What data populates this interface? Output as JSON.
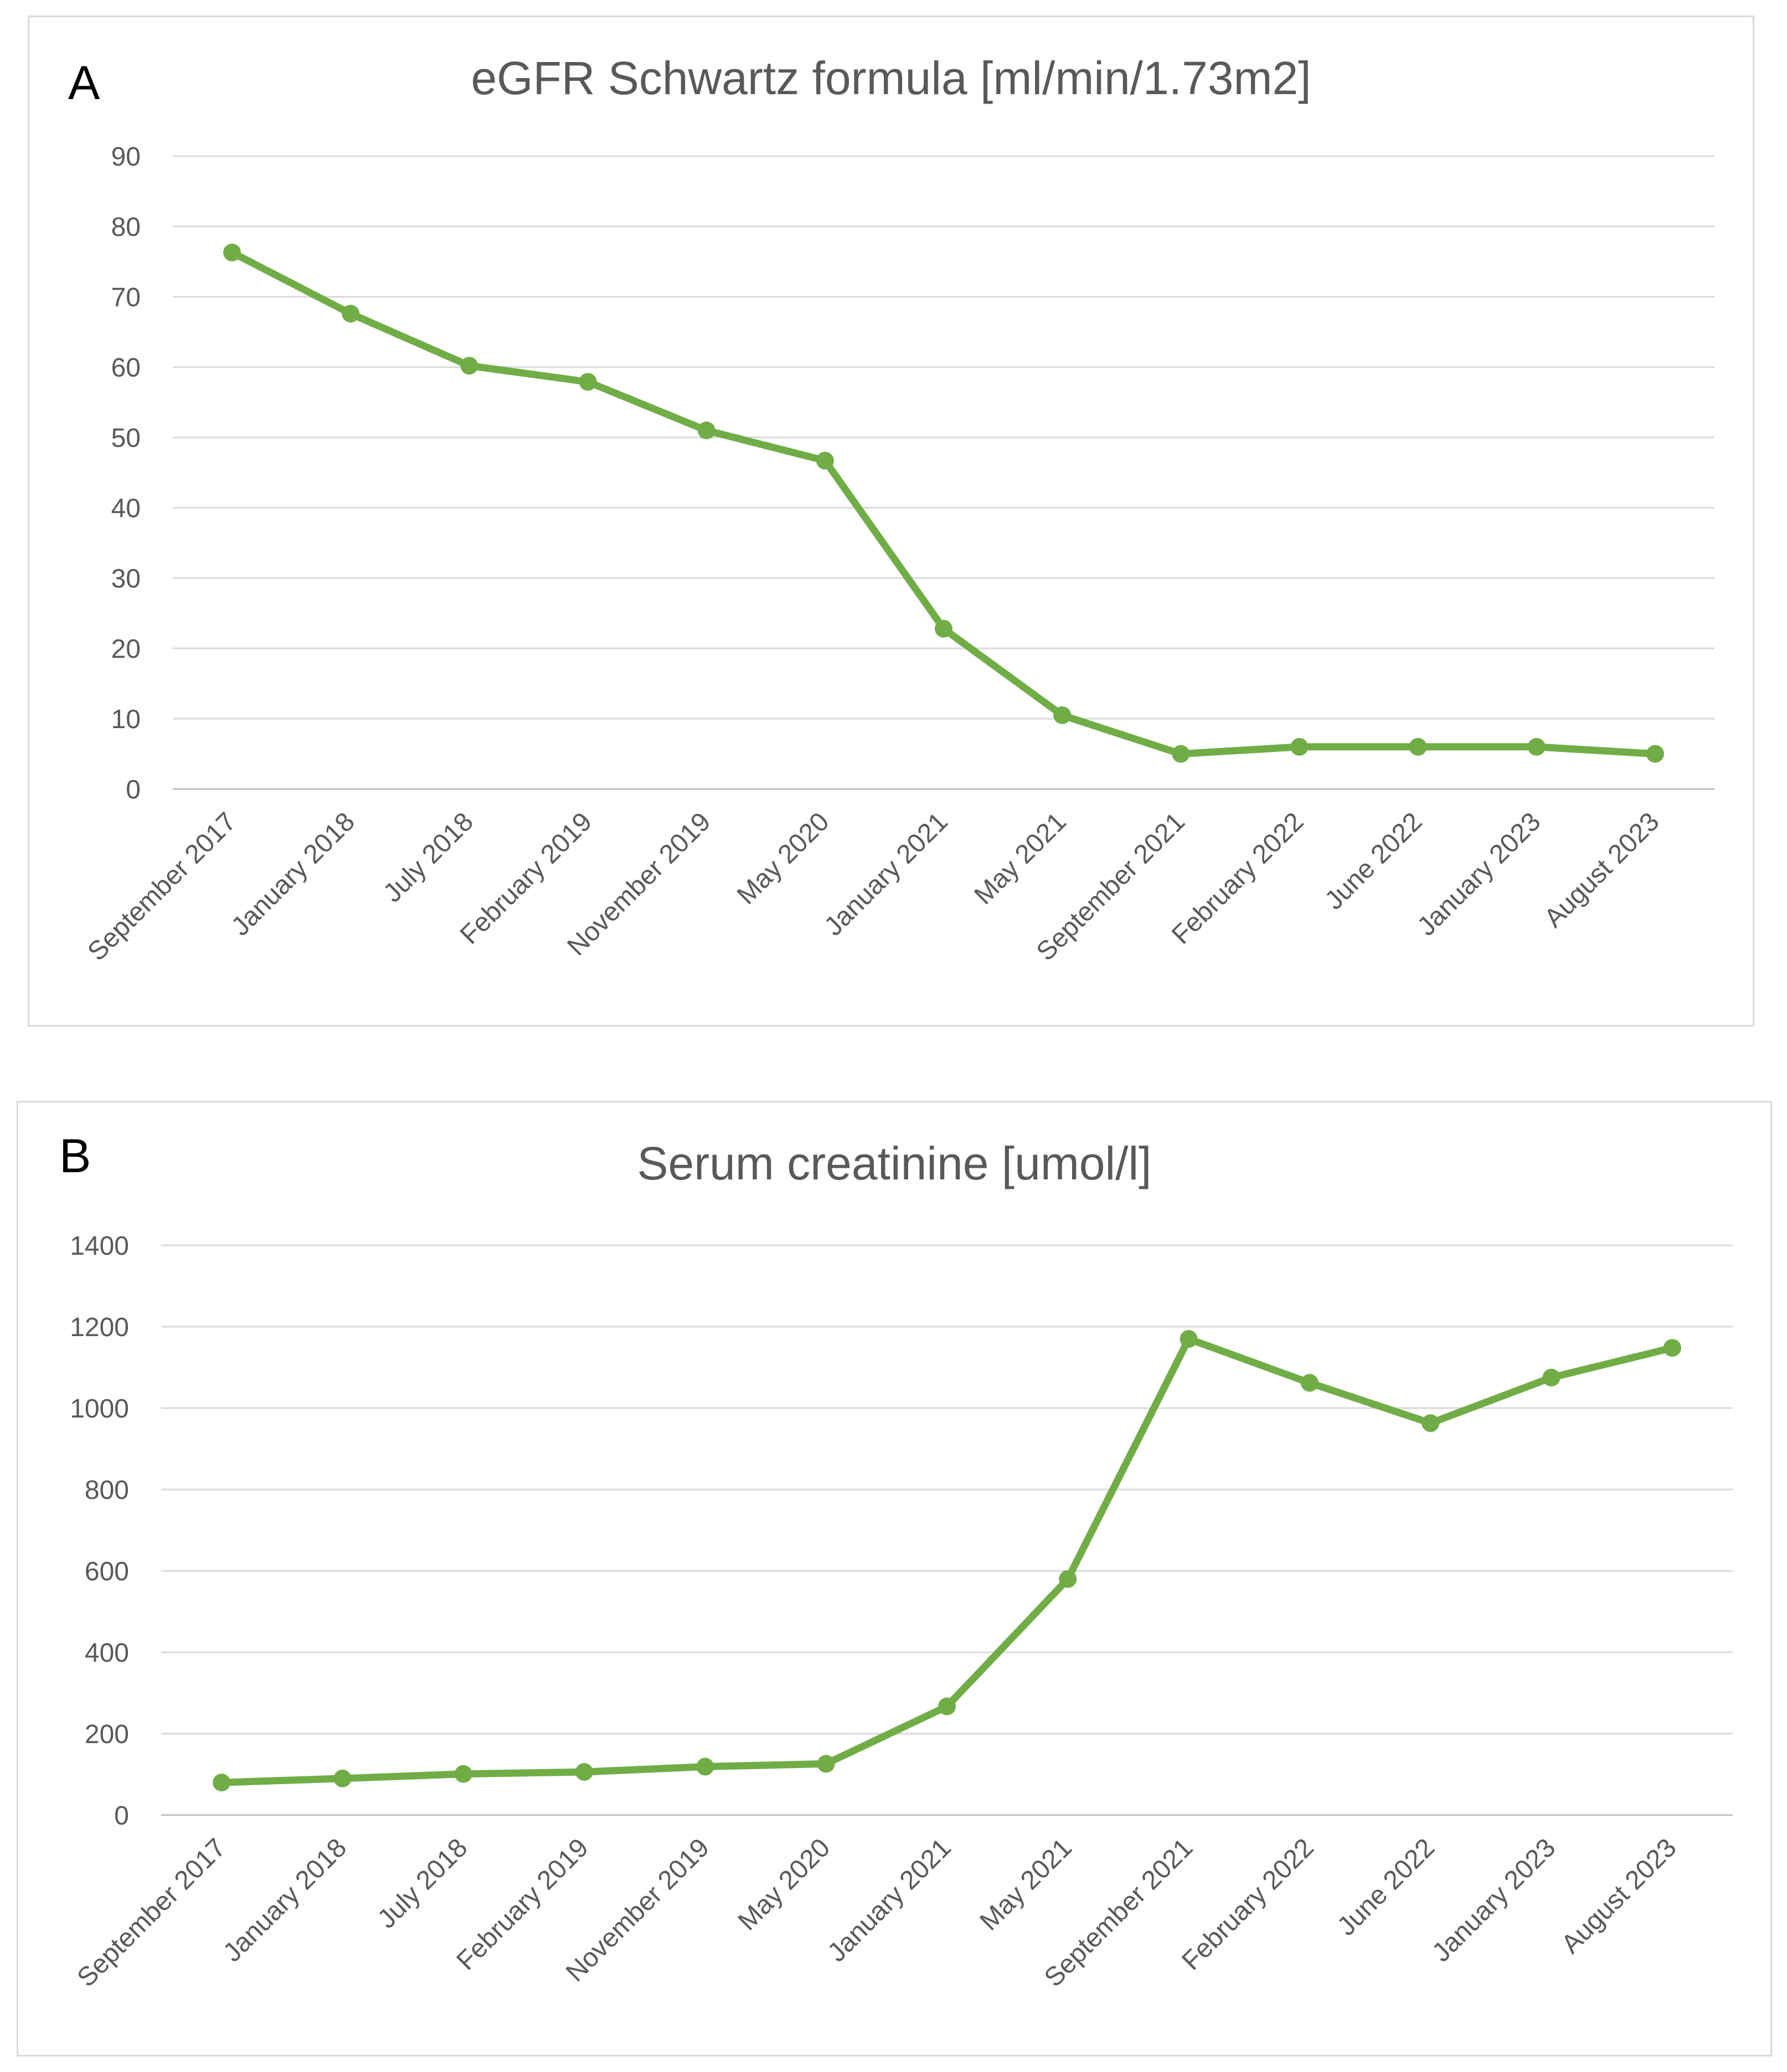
{
  "chart_data": [
    {
      "panel_label": "A",
      "type": "line",
      "title": "eGFR Schwartz formula [ml/min/1.73m2]",
      "categories": [
        "September 2017",
        "January 2018",
        "July 2018",
        "February 2019",
        "November 2019",
        "May 2020",
        "January 2021",
        "May 2021",
        "September 2021",
        "February 2022",
        "June 2022",
        "January 2023",
        "August 2023"
      ],
      "series": [
        {
          "name": "eGFR",
          "values": [
            76.3,
            67.6,
            60.2,
            57.9,
            51,
            46.7,
            22.8,
            10.5,
            5,
            6,
            6,
            6,
            5
          ],
          "color": "#70ad47"
        }
      ],
      "yticks": [
        0,
        10,
        20,
        30,
        40,
        50,
        60,
        70,
        80,
        90
      ],
      "ylim": [
        0,
        90
      ],
      "grid": true
    },
    {
      "panel_label": "B",
      "type": "line",
      "title": "Serum creatinine [umol/l]",
      "categories": [
        "September 2017",
        "January 2018",
        "July 2018",
        "February 2019",
        "November 2019",
        "May 2020",
        "January 2021",
        "May 2021",
        "September 2021",
        "February 2022",
        "June 2022",
        "January 2023",
        "August 2023"
      ],
      "series": [
        {
          "name": "Serum creatinine",
          "values": [
            80,
            90,
            101,
            106,
            119,
            126,
            267,
            580,
            1170,
            1062,
            963,
            1075,
            1148
          ],
          "color": "#70ad47"
        }
      ],
      "yticks": [
        0,
        200,
        400,
        600,
        800,
        1000,
        1200,
        1400
      ],
      "ylim": [
        0,
        1400
      ],
      "grid": true
    }
  ]
}
